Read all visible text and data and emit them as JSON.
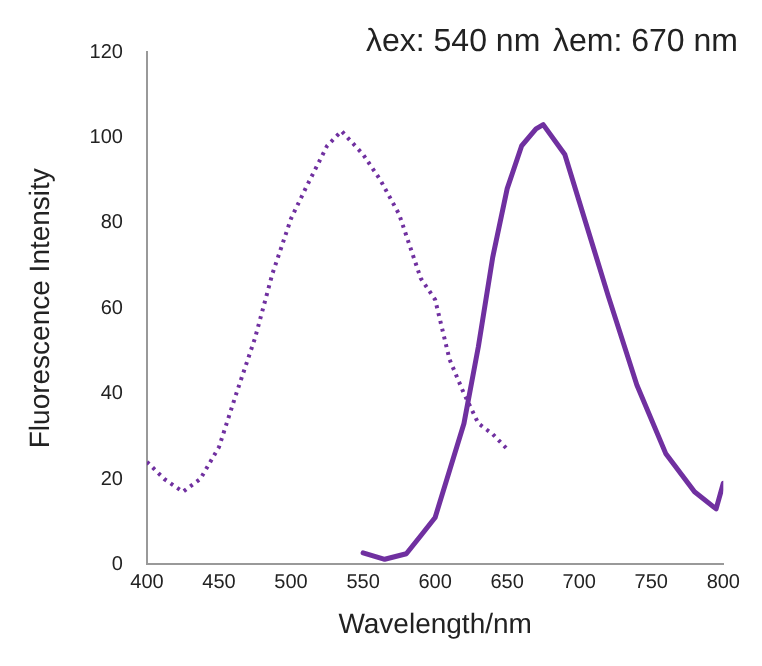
{
  "chart_data": {
    "type": "line",
    "xlabel": "Wavelength/nm",
    "ylabel": "Fluorescence Intensity",
    "annotations": [
      "λex: 540 nm",
      "λem: 670 nm"
    ],
    "xlim": [
      400,
      800
    ],
    "xticks": [
      400,
      450,
      500,
      550,
      600,
      650,
      700,
      750,
      800
    ],
    "ylim": [
      0,
      120
    ],
    "yticks": [
      0,
      20,
      40,
      60,
      80,
      100,
      120
    ],
    "grid": false,
    "legend": false,
    "marker": "none",
    "series": [
      {
        "color": "#7030a0",
        "line_style": "dotted",
        "x": [
          400,
          412,
          425,
          437,
          450,
          462,
          475,
          487,
          500,
          510,
          525,
          535,
          550,
          562,
          575,
          590,
          600,
          610,
          620,
          630,
          640,
          650
        ],
        "values": [
          24,
          20,
          17,
          20,
          27.5,
          40,
          53,
          68,
          81,
          88,
          98,
          101.5,
          96,
          90,
          82,
          67,
          62,
          48,
          40,
          33,
          30.5,
          27
        ]
      },
      {
        "color": "#7030a0",
        "line_style": "solid",
        "x": [
          550,
          565,
          580,
          590,
          600,
          610,
          620,
          630,
          640,
          650,
          660,
          670,
          675,
          690,
          700,
          720,
          740,
          760,
          780,
          795,
          800
        ],
        "values": [
          2.7,
          1.2,
          2.5,
          6.7,
          11,
          22,
          33,
          51,
          72,
          88,
          98,
          102,
          103,
          96,
          85,
          63,
          42,
          26,
          17,
          13,
          19
        ]
      }
    ]
  }
}
